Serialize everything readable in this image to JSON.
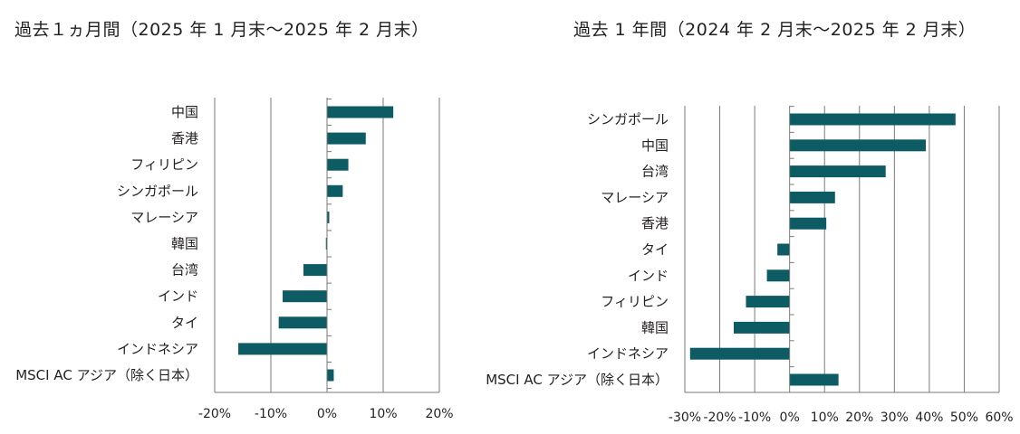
{
  "chart_data": [
    {
      "type": "bar",
      "orientation": "horizontal",
      "title": "過去１ヵ月間（2025 年 1 月末～2025 年 2 月末）",
      "categories": [
        "中国",
        "香港",
        "フィリピン",
        "シンガポール",
        "マレーシア",
        "韓国",
        "台湾",
        "インド",
        "タイ",
        "インドネシア",
        "MSCI AC アジア（除く日本）"
      ],
      "values": [
        11.8,
        6.9,
        3.8,
        2.8,
        0.4,
        -0.2,
        -4.2,
        -7.9,
        -8.6,
        -15.8,
        1.2
      ],
      "xlim": [
        -20,
        20
      ],
      "xticks": [
        "-20%",
        "-10%",
        "0%",
        "10%",
        "20%"
      ],
      "grid": "vertical",
      "bar_color": "#0d5c63"
    },
    {
      "type": "bar",
      "orientation": "horizontal",
      "title": "過去 1 年間（2024 年 2 月末～2025 年 2 月末）",
      "categories": [
        "シンガポール",
        "中国",
        "台湾",
        "マレーシア",
        "香港",
        "タイ",
        "インド",
        "フィリピン",
        "韓国",
        "インドネシア",
        "MSCI AC アジア（除く日本）"
      ],
      "values": [
        47.5,
        39.0,
        27.5,
        13.0,
        10.5,
        -3.5,
        -6.5,
        -12.5,
        -16.0,
        -28.5,
        14.0
      ],
      "xlim": [
        -30,
        60
      ],
      "xticks": [
        "-30%",
        "-20%",
        "-10%",
        "0%",
        "10%",
        "20%",
        "30%",
        "40%",
        "50%",
        "60%"
      ],
      "grid": "vertical",
      "bar_color": "#0d5c63"
    }
  ]
}
